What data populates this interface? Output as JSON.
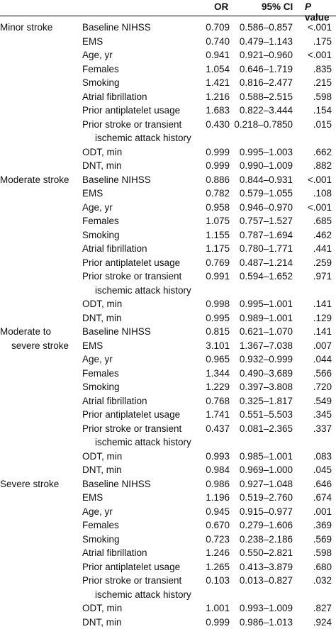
{
  "header": {
    "or": "OR",
    "ci": "95% CI",
    "p_italic": "P",
    "p_rest": " value"
  },
  "groups": [
    {
      "label_lines": [
        "Minor stroke"
      ],
      "rows": [
        {
          "var": "Baseline NIHSS",
          "or": "0.709",
          "ci": "0.586–0.857",
          "p": "<.001"
        },
        {
          "var": "EMS",
          "or": "0.740",
          "ci": "0.479–1.143",
          "p": ".175"
        },
        {
          "var": "Age, yr",
          "or": "0.941",
          "ci": "0.921–0.960",
          "p": "<.001"
        },
        {
          "var": "Females",
          "or": "1.054",
          "ci": "0.646–1.719",
          "p": ".835"
        },
        {
          "var": "Smoking",
          "or": "1.421",
          "ci": "0.816–2.477",
          "p": ".215"
        },
        {
          "var": "Atrial fibrillation",
          "or": "1.216",
          "ci": "0.588–2.515",
          "p": ".598"
        },
        {
          "var": "Prior antiplatelet usage",
          "or": "1.683",
          "ci": "0.822–3.444",
          "p": ".154"
        },
        {
          "var": "Prior stroke or transient",
          "var2": "ischemic attack history",
          "or": "0.430",
          "ci": "0.218–0.7850",
          "p": ".015"
        },
        {
          "var": "ODT, min",
          "or": "0.999",
          "ci": "0.995–1.003",
          "p": ".662"
        },
        {
          "var": "DNT, min",
          "or": "0.999",
          "ci": "0.990–1.009",
          "p": ".882"
        }
      ]
    },
    {
      "label_lines": [
        "Moderate stroke"
      ],
      "rows": [
        {
          "var": "Baseline NIHSS",
          "or": "0.886",
          "ci": "0.844–0.931",
          "p": "<.001"
        },
        {
          "var": "EMS",
          "or": "0.782",
          "ci": "0.579–1.055",
          "p": ".108"
        },
        {
          "var": "Age, yr",
          "or": "0.958",
          "ci": "0.946–0.970",
          "p": "<.001"
        },
        {
          "var": "Females",
          "or": "1.075",
          "ci": "0.757–1.527",
          "p": ".685"
        },
        {
          "var": "Smoking",
          "or": "1.155",
          "ci": "0.787–1.694",
          "p": ".462"
        },
        {
          "var": "Atrial fibrillation",
          "or": "1.175",
          "ci": "0.780–1.771",
          "p": ".441"
        },
        {
          "var": "Prior antiplatelet usage",
          "or": "0.769",
          "ci": "0.487–1.214",
          "p": ".259"
        },
        {
          "var": "Prior stroke or transient",
          "var2": "ischemic attack history",
          "or": "0.991",
          "ci": "0.594–1.652",
          "p": ".971"
        },
        {
          "var": "ODT, min",
          "or": "0.998",
          "ci": "0.995–1.001",
          "p": ".141"
        },
        {
          "var": "DNT, min",
          "or": "0.995",
          "ci": "0.989–1.001",
          "p": ".129"
        }
      ]
    },
    {
      "label_lines": [
        "Moderate to",
        "severe stroke"
      ],
      "rows": [
        {
          "var": "Baseline NIHSS",
          "or": "0.815",
          "ci": "0.621–1.070",
          "p": ".141"
        },
        {
          "var": "EMS",
          "or": "3.101",
          "ci": "1.367–7.038",
          "p": ".007"
        },
        {
          "var": "Age, yr",
          "or": "0.965",
          "ci": "0.932–0.999",
          "p": ".044"
        },
        {
          "var": "Females",
          "or": "1.344",
          "ci": "0.490–3.689",
          "p": ".566"
        },
        {
          "var": "Smoking",
          "or": "1.229",
          "ci": "0.397–3.808",
          "p": ".720"
        },
        {
          "var": "Atrial fibrillation",
          "or": "0.768",
          "ci": "0.325–1.817",
          "p": ".549"
        },
        {
          "var": "Prior antiplatelet usage",
          "or": "1.741",
          "ci": "0.551–5.503",
          "p": ".345"
        },
        {
          "var": "Prior stroke or transient",
          "var2": "ischemic attack history",
          "or": "0.437",
          "ci": "0.081–2.365",
          "p": ".337"
        },
        {
          "var": "ODT, min",
          "or": "0.993",
          "ci": "0.985–1.001",
          "p": ".083"
        },
        {
          "var": "DNT, min",
          "or": "0.984",
          "ci": "0.969–1.000",
          "p": ".045"
        }
      ]
    },
    {
      "label_lines": [
        "Severe stroke"
      ],
      "rows": [
        {
          "var": "Baseline NIHSS",
          "or": "0.986",
          "ci": "0.927–1.048",
          "p": ".646"
        },
        {
          "var": "EMS",
          "or": "1.196",
          "ci": "0.519–2.760",
          "p": ".674"
        },
        {
          "var": "Age, yr",
          "or": "0.945",
          "ci": "0.915–0.977",
          "p": ".001"
        },
        {
          "var": "Females",
          "or": "0.670",
          "ci": "0.279–1.606",
          "p": ".369"
        },
        {
          "var": "Smoking",
          "or": "0.723",
          "ci": "0.238–2.186",
          "p": ".569"
        },
        {
          "var": "Atrial fibrillation",
          "or": "1.246",
          "ci": "0.550–2.821",
          "p": ".598"
        },
        {
          "var": "Prior antiplatelet usage",
          "or": "1.265",
          "ci": "0.413–3.879",
          "p": ".680"
        },
        {
          "var": "Prior stroke or transient",
          "var2": "ischemic attack history",
          "or": "0.103",
          "ci": "0.013–0.827",
          "p": ".032"
        },
        {
          "var": "ODT, min",
          "or": "1.001",
          "ci": "0.993–1.009",
          "p": ".827"
        },
        {
          "var": "DNT, min",
          "or": "0.999",
          "ci": "0.986–1.013",
          "p": ".924"
        }
      ]
    }
  ]
}
